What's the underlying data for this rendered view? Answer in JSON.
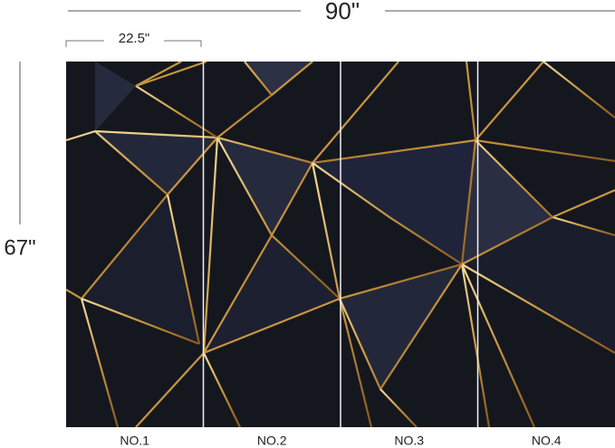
{
  "dimensions": {
    "width": "90\"",
    "panel_width": "22.5\"",
    "height": "67\""
  },
  "panels": [
    "NO.1",
    "NO.2",
    "NO.3",
    "NO.4"
  ]
}
